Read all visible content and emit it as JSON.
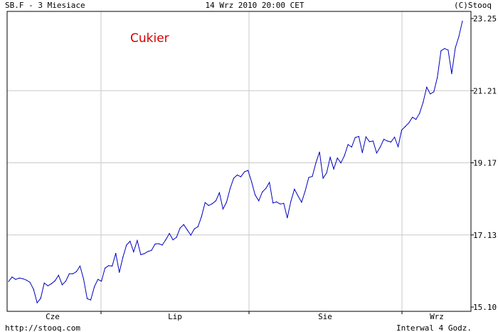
{
  "header": {
    "left": "SB.F - 3 Miesiace",
    "center": "14 Wrz 2010 20:00 CET",
    "right": "(C)Stooq"
  },
  "footer": {
    "left": "http://stooq.com",
    "right": "Interwal 4 Godz."
  },
  "colors": {
    "line": "#0000c0",
    "grid": "#c8c8c8",
    "title": "#d40000",
    "axis": "#000000",
    "background": "#ffffff"
  },
  "chart_data": {
    "type": "line",
    "title": "Cukier",
    "x_tick_labels": [
      "Cze",
      "Lip",
      "Sie",
      "Wrz"
    ],
    "y_tick_labels": [
      "15.10",
      "17.13",
      "19.17",
      "21.21",
      "23.25"
    ],
    "ylim": [
      15.1,
      23.25
    ],
    "grid": true,
    "series": [
      {
        "values": [
          15.82,
          15.95,
          15.88,
          15.92,
          15.9,
          15.86,
          15.8,
          15.6,
          15.22,
          15.35,
          15.78,
          15.7,
          15.76,
          15.84,
          16.0,
          15.73,
          15.83,
          16.04,
          16.04,
          16.1,
          16.26,
          15.89,
          15.34,
          15.3,
          15.67,
          15.88,
          15.83,
          16.2,
          16.27,
          16.26,
          16.62,
          16.08,
          16.51,
          16.85,
          16.96,
          16.66,
          16.98,
          16.58,
          16.61,
          16.67,
          16.7,
          16.88,
          16.89,
          16.85,
          17.0,
          17.18,
          17.0,
          17.07,
          17.33,
          17.43,
          17.28,
          17.13,
          17.31,
          17.37,
          17.66,
          18.05,
          17.97,
          18.02,
          18.1,
          18.33,
          17.87,
          18.06,
          18.45,
          18.74,
          18.83,
          18.78,
          18.92,
          18.96,
          18.64,
          18.27,
          18.1,
          18.35,
          18.45,
          18.62,
          18.04,
          18.07,
          18.01,
          18.03,
          17.62,
          18.09,
          18.43,
          18.24,
          18.06,
          18.38,
          18.76,
          18.79,
          19.17,
          19.48,
          18.74,
          18.89,
          19.33,
          19.0,
          19.31,
          19.17,
          19.38,
          19.69,
          19.62,
          19.89,
          19.92,
          19.46,
          19.91,
          19.77,
          19.79,
          19.45,
          19.62,
          19.84,
          19.79,
          19.76,
          19.9,
          19.63,
          20.1,
          20.2,
          20.3,
          20.46,
          20.4,
          20.57,
          20.88,
          21.31,
          21.12,
          21.18,
          21.59,
          22.34,
          22.4,
          22.36,
          21.69,
          22.42,
          22.74,
          23.18
        ]
      }
    ]
  }
}
